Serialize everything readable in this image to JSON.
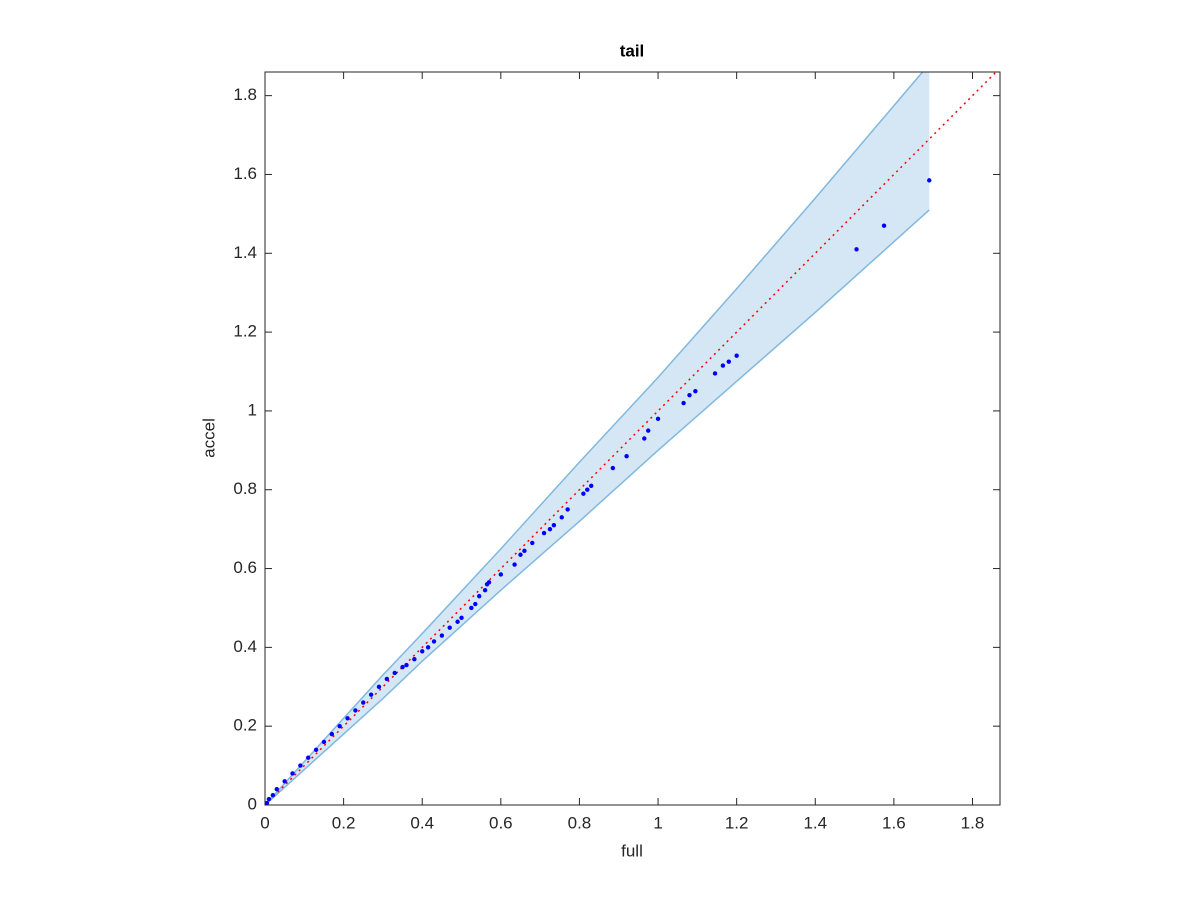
{
  "chart_data": {
    "type": "scatter",
    "title": "tail",
    "xlabel": "full",
    "ylabel": "accel",
    "x": [
      0,
      0.005,
      0.01,
      0.02,
      0.03,
      0.05,
      0.07,
      0.09,
      0.11,
      0.13,
      0.15,
      0.17,
      0.19,
      0.21,
      0.23,
      0.25,
      0.27,
      0.29,
      0.31,
      0.33,
      0.35,
      0.36,
      0.38,
      0.4,
      0.415,
      0.43,
      0.45,
      0.47,
      0.49,
      0.5,
      0.525,
      0.535,
      0.545,
      0.56,
      0.565,
      0.57,
      0.6,
      0.635,
      0.65,
      0.66,
      0.68,
      0.71,
      0.725,
      0.735,
      0.755,
      0.77,
      0.81,
      0.82,
      0.83,
      0.885,
      0.92,
      0.965,
      0.975,
      1.0,
      1.065,
      1.08,
      1.095,
      1.145,
      1.165,
      1.18,
      1.2,
      1.505,
      1.575,
      1.69
    ],
    "y": [
      0,
      0.005,
      0.015,
      0.025,
      0.04,
      0.06,
      0.08,
      0.1,
      0.12,
      0.14,
      0.16,
      0.18,
      0.2,
      0.22,
      0.24,
      0.26,
      0.28,
      0.3,
      0.32,
      0.335,
      0.35,
      0.355,
      0.37,
      0.39,
      0.4,
      0.415,
      0.43,
      0.45,
      0.465,
      0.475,
      0.5,
      0.51,
      0.53,
      0.545,
      0.56,
      0.565,
      0.585,
      0.61,
      0.635,
      0.645,
      0.665,
      0.69,
      0.7,
      0.71,
      0.73,
      0.75,
      0.79,
      0.8,
      0.81,
      0.855,
      0.885,
      0.93,
      0.95,
      0.98,
      1.02,
      1.04,
      1.05,
      1.095,
      1.115,
      1.125,
      1.14,
      1.41,
      1.47,
      1.585
    ],
    "color": "#0000ff",
    "band": {
      "x": [
        0,
        0.1,
        0.2,
        0.3,
        0.4,
        0.6,
        0.8,
        1.0,
        1.2,
        1.4,
        1.69
      ],
      "upper": [
        0,
        0.11,
        0.22,
        0.33,
        0.435,
        0.65,
        0.87,
        1.085,
        1.31,
        1.54,
        1.88
      ],
      "lower": [
        0,
        0.09,
        0.18,
        0.27,
        0.365,
        0.545,
        0.72,
        0.9,
        1.075,
        1.25,
        1.51
      ],
      "color": "#d5e6f4",
      "edge_color": "#80b8e0"
    },
    "reference": {
      "x": [
        0,
        1.87
      ],
      "y": [
        0,
        1.87
      ],
      "color": "#ff0000"
    },
    "xlim": [
      0,
      1.87
    ],
    "ylim": [
      0,
      1.86
    ],
    "xticks": [
      0,
      0.2,
      0.4,
      0.6,
      0.8,
      1,
      1.2,
      1.4,
      1.6,
      1.8
    ],
    "yticks": [
      0,
      0.2,
      0.4,
      0.6,
      0.8,
      1,
      1.2,
      1.4,
      1.6,
      1.8
    ]
  }
}
